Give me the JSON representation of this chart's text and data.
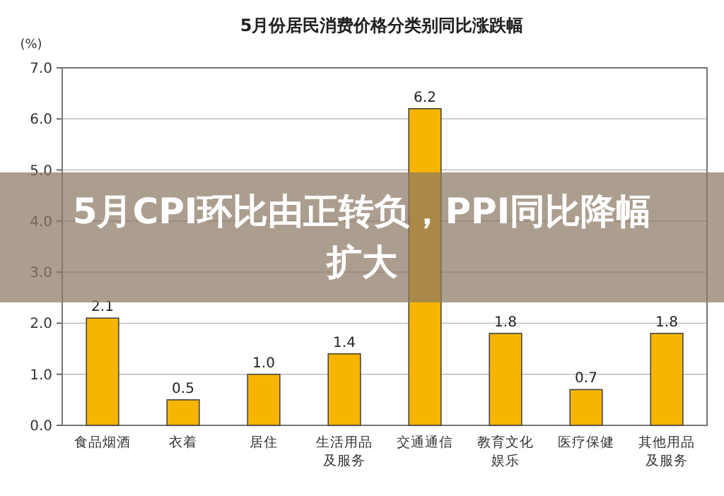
{
  "chart_data": {
    "type": "bar",
    "title": "5月份居民消费价格分类别同比涨跌幅",
    "ylabel": "(%)",
    "categories": [
      "食品烟酒",
      "衣着",
      "居住",
      "生活用品及服务",
      "交通通信",
      "教育文化娱乐",
      "医疗保健",
      "其他用品及服务"
    ],
    "values": [
      2.1,
      0.5,
      1.0,
      1.4,
      6.2,
      1.8,
      0.7,
      1.8
    ],
    "value_labels": [
      "2.1",
      "0.5",
      "1.0",
      "1.4",
      "6.2",
      "1.8",
      "0.7",
      "1.8"
    ],
    "color": "#f7b500",
    "ylim": [
      0,
      7
    ],
    "yticks": [
      {
        "value": 0,
        "label": "0.0"
      },
      {
        "value": 1,
        "label": "1.0"
      },
      {
        "value": 2,
        "label": "2.0"
      },
      {
        "value": 3,
        "label": "3.0"
      },
      {
        "value": 4,
        "label": "4.0"
      },
      {
        "value": 5,
        "label": "5.0"
      },
      {
        "value": 6,
        "label": "6.0"
      },
      {
        "value": 7,
        "label": "7.0"
      }
    ],
    "grid": "y",
    "annotations": [
      "5月CPI环比由正转负，PPI同比降幅扩大"
    ]
  }
}
